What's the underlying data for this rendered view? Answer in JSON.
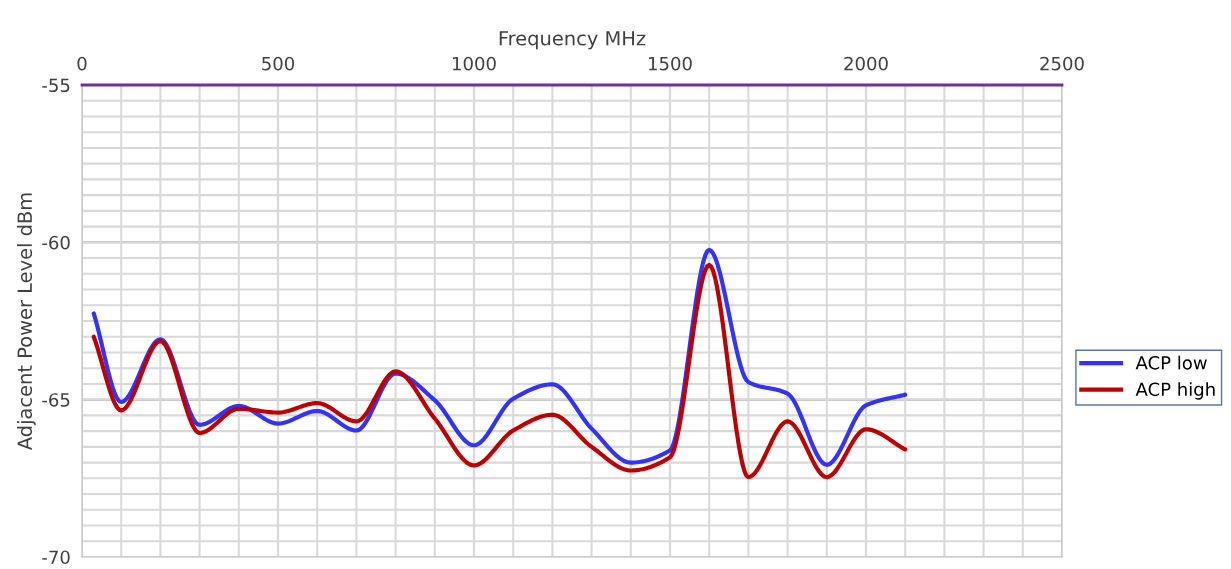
{
  "chart_data": {
    "type": "line",
    "xlabel": "Frequency MHz",
    "ylabel": "Adjacent Power Level dBm",
    "x": [
      30,
      100,
      200,
      300,
      400,
      500,
      600,
      700,
      800,
      900,
      1000,
      1100,
      1200,
      1300,
      1400,
      1500,
      1600,
      1700,
      1800,
      1900,
      2000,
      2100
    ],
    "series": [
      {
        "name": "ACP low",
        "color": "#3333ff",
        "values": [
          -62.26,
          -65.07,
          -63.08,
          -65.8,
          -65.2,
          -65.76,
          -65.36,
          -65.98,
          -64.17,
          -65.02,
          -66.45,
          -64.97,
          -64.51,
          -65.92,
          -67.0,
          -66.61,
          -60.24,
          -64.44,
          -64.81,
          -67.07,
          -65.18,
          -64.84
        ]
      },
      {
        "name": "ACP high",
        "color": "#c00000",
        "values": [
          -63.0,
          -65.34,
          -63.14,
          -66.06,
          -65.29,
          -65.41,
          -65.11,
          -65.69,
          -64.1,
          -65.6,
          -67.09,
          -65.98,
          -65.48,
          -66.5,
          -67.25,
          -66.83,
          -60.72,
          -67.46,
          -65.69,
          -67.46,
          -65.94,
          -66.58
        ]
      }
    ],
    "xlim": [
      0,
      2500
    ],
    "xticks": [
      0,
      500,
      1000,
      1500,
      2000,
      2500
    ],
    "ylim": [
      -70,
      -55
    ],
    "yticks": [
      -70,
      -65,
      -60,
      -55
    ],
    "grid": true,
    "legend": "right",
    "marker": "none",
    "line_style": "solid"
  }
}
